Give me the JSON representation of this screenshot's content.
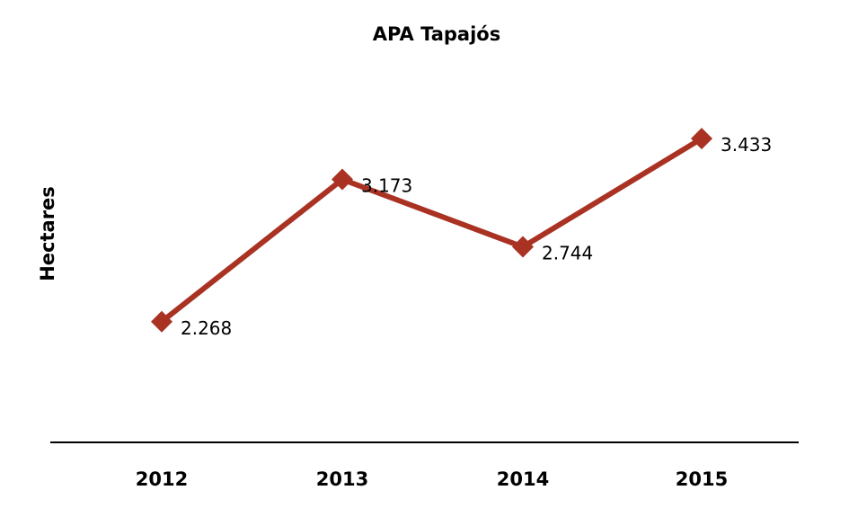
{
  "chart_data": {
    "type": "line",
    "title": "APA Tapajós",
    "xlabel": "",
    "ylabel": "Hectares",
    "categories": [
      "2012",
      "2013",
      "2014",
      "2015"
    ],
    "series": [
      {
        "values": [
          2268,
          3173,
          2744,
          3433
        ],
        "labels": [
          "2.268",
          "3.173",
          "2.744",
          "3.433"
        ],
        "color": "#A93223",
        "marker": "diamond"
      }
    ],
    "ylim": [
      1500,
      4000
    ],
    "grid": false,
    "legend": "none"
  }
}
